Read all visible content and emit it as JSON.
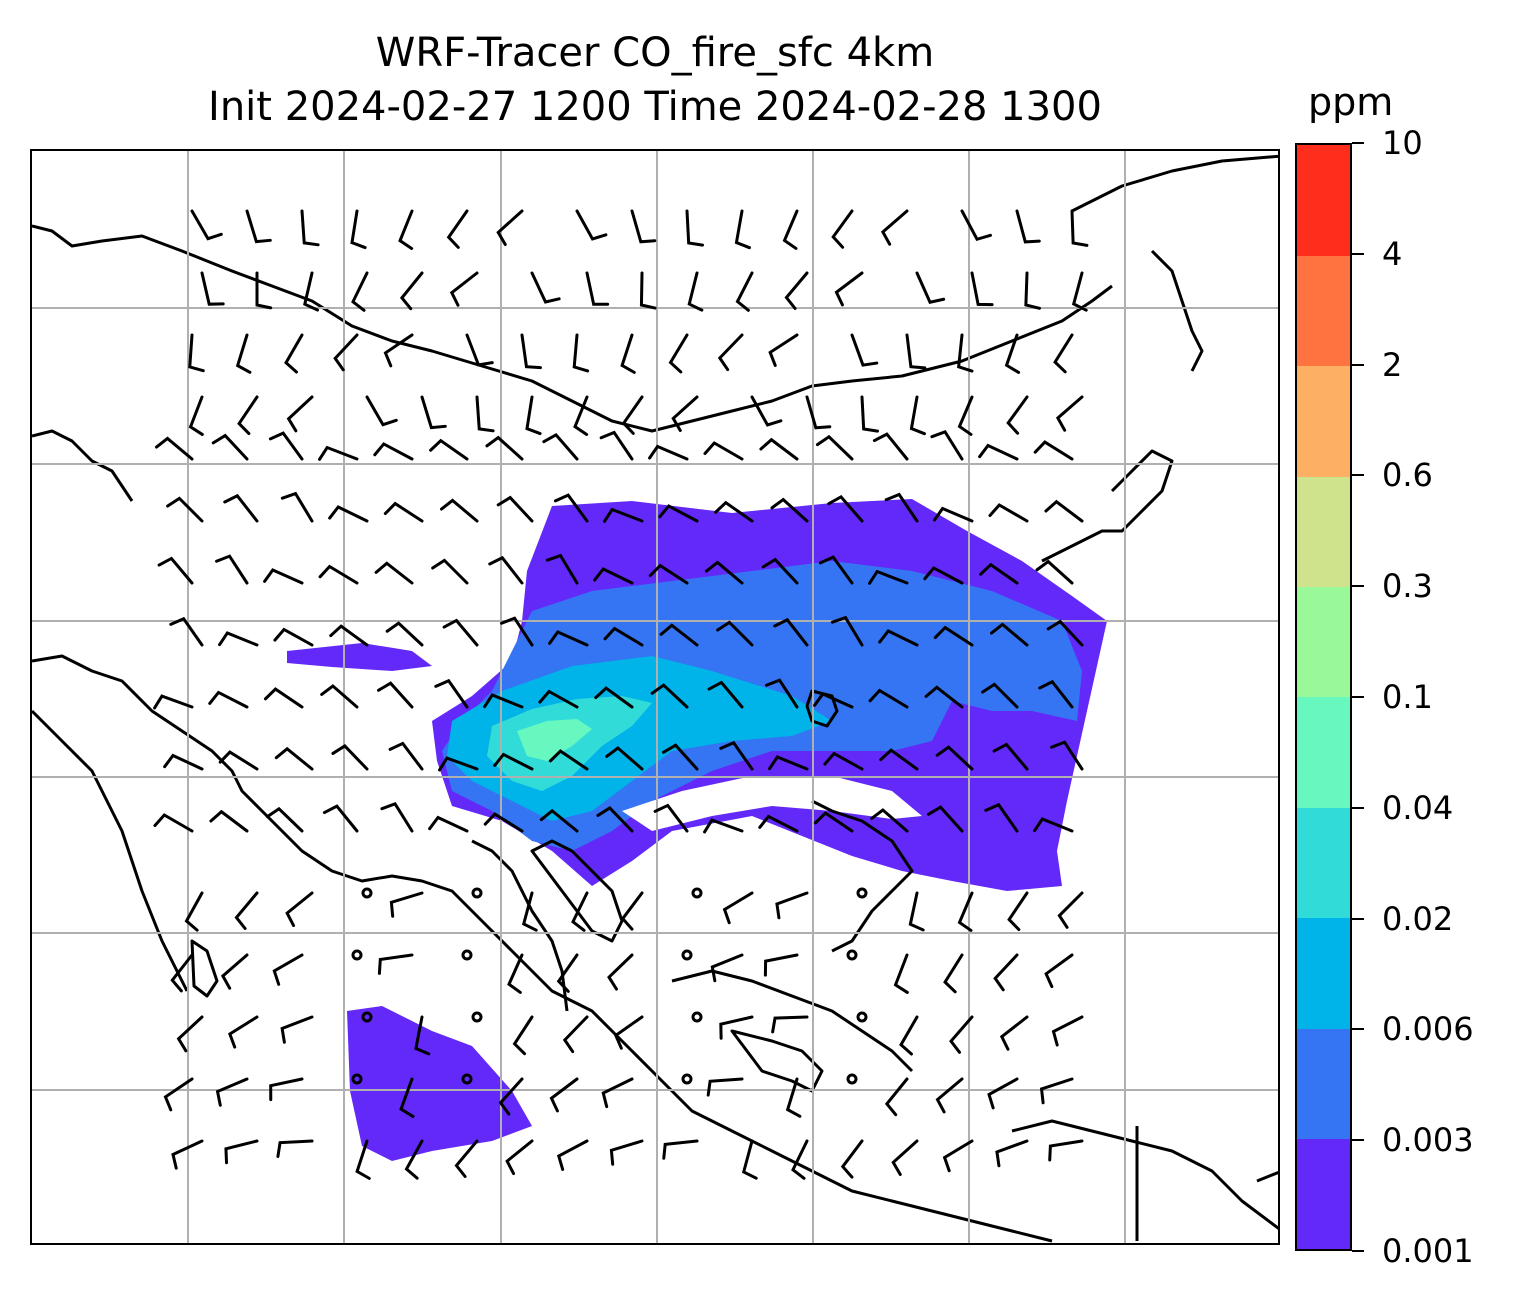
{
  "title": {
    "line1": "WRF-Tracer CO_fire_sfc 4km",
    "line2": "Init 2024-02-27 1200 Time 2024-02-28 1300"
  },
  "colorbar": {
    "unit": "ppm",
    "ticks": [
      "0.001",
      "0.003",
      "0.006",
      "0.02",
      "0.04",
      "0.1",
      "0.3",
      "0.6",
      "2",
      "4",
      "10"
    ],
    "colors": [
      "#6329f8",
      "#3574f2",
      "#00b3e9",
      "#31dcd8",
      "#67f8bf",
      "#99f897",
      "#cfe38d",
      "#fdb063",
      "#ff7340",
      "#ff2d1b"
    ]
  },
  "map": {
    "gridlines": true,
    "wind_barbs": true,
    "coastlines": true
  }
}
